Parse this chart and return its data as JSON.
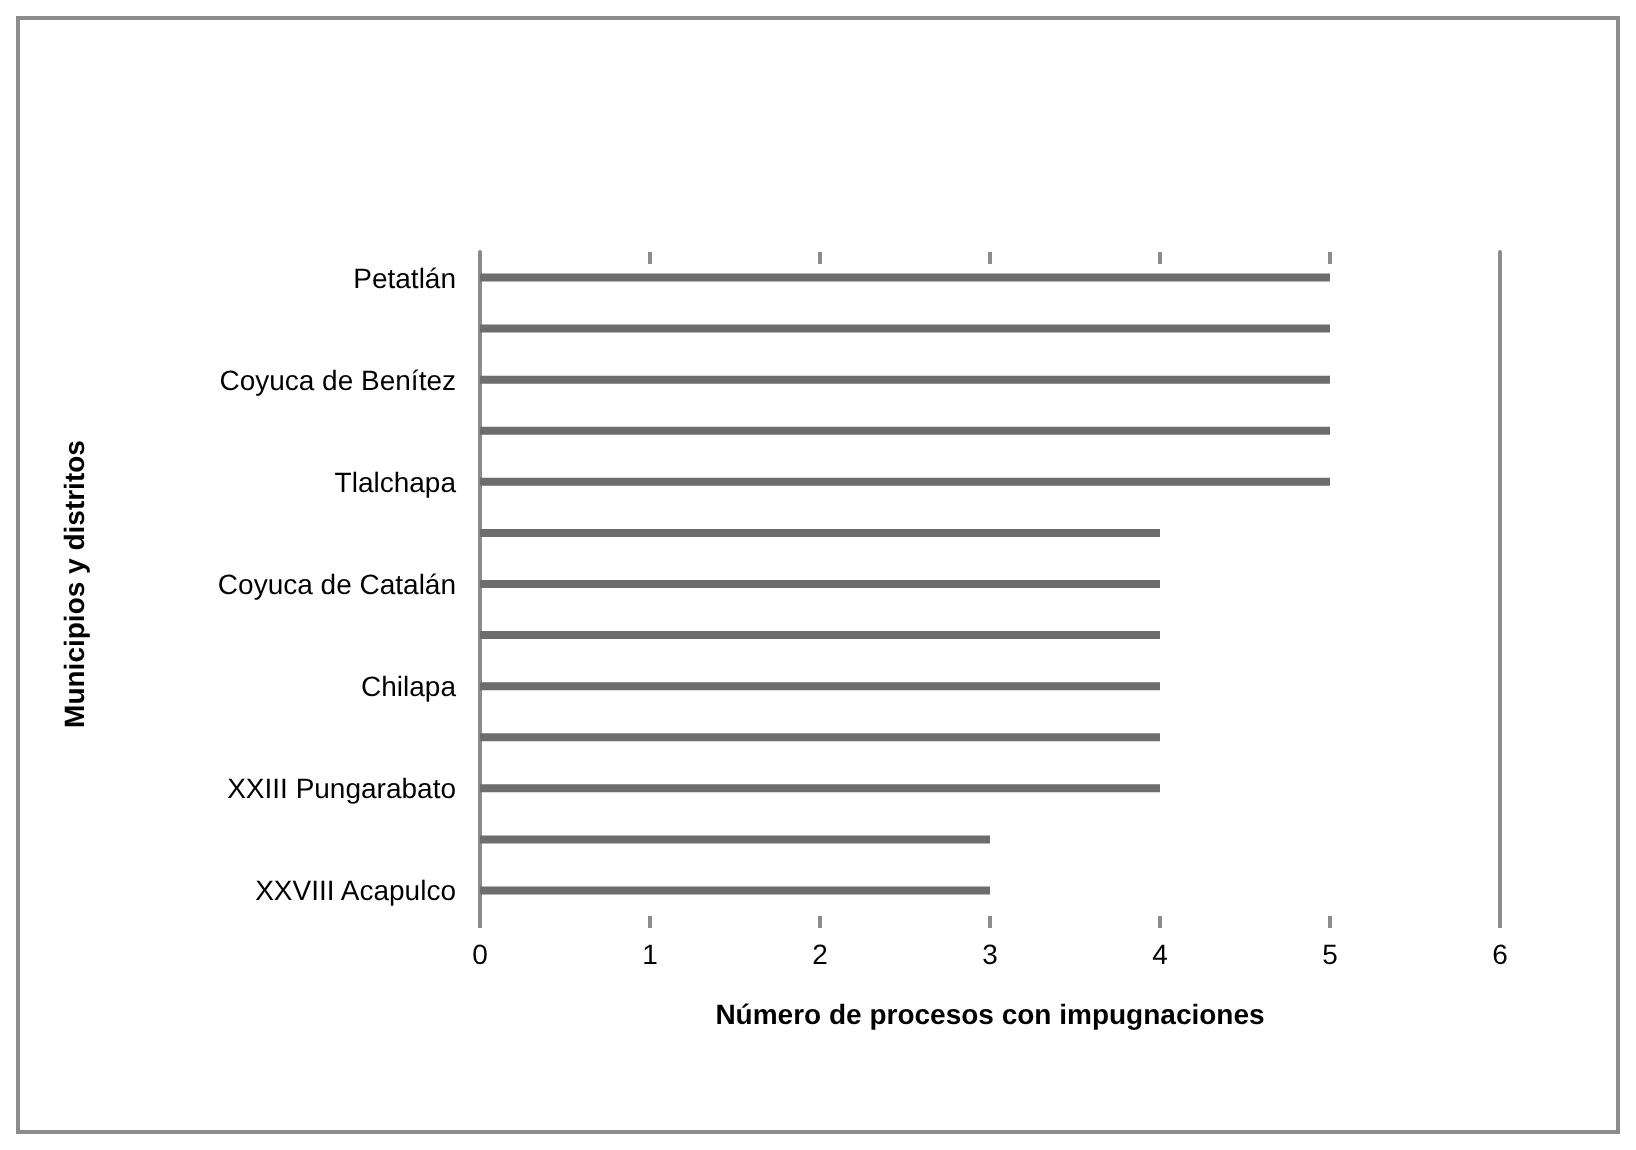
{
  "chart_data": {
    "type": "bar",
    "orientation": "horizontal",
    "xlabel": "Número de procesos con impugnaciones",
    "ylabel": "Municipios y distritos",
    "categories": [
      "Petatlán",
      null,
      "Coyuca de Benítez",
      null,
      "Tlalchapa",
      null,
      "Coyuca de Catalán",
      null,
      "Chilapa",
      null,
      "XXIII Pungarabato",
      null,
      "XXVIII Acapulco"
    ],
    "values": [
      5,
      5,
      5,
      5,
      5,
      4,
      4,
      4,
      4,
      4,
      4,
      3,
      3
    ],
    "color": "#6d6d6d",
    "xlim": [
      0,
      6
    ],
    "xticks": [
      0,
      1,
      2,
      3,
      4,
      5,
      6
    ],
    "grid": false
  }
}
